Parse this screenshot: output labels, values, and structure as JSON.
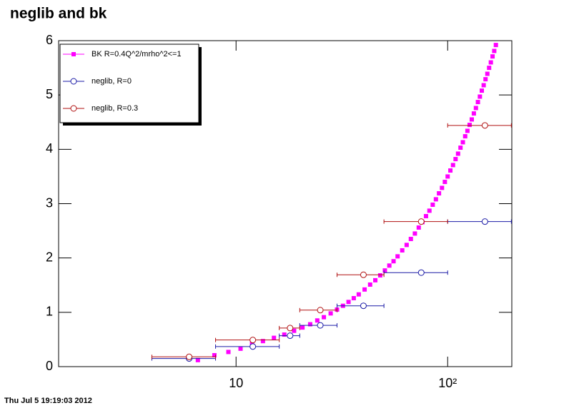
{
  "chart_data": {
    "type": "scatter",
    "title": "neglib and bk",
    "footer": "Thu Jul  5 19:19:03 2012",
    "xscale": "log",
    "xlim": [
      1.45,
      201
    ],
    "xticks": [
      10,
      {
        "value": 100,
        "label": "10²"
      }
    ],
    "ylim": [
      0,
      6
    ],
    "yticks": [
      0,
      1,
      2,
      3,
      4,
      5,
      6
    ],
    "legend": "top-left",
    "series": [
      {
        "name": "BK R=0.4Q^2/mrho^2<=1",
        "color": "#ff00ff",
        "marker": "square",
        "x": [
          6.6,
          7.9,
          9.2,
          10.5,
          11.9,
          13.4,
          15.1,
          16.9,
          18.8,
          20.6,
          22.4,
          24.2,
          26,
          28,
          30,
          32,
          34,
          36,
          38,
          40.5,
          43,
          45.5,
          48,
          50.5,
          53,
          55.5,
          58,
          61,
          64,
          67,
          70,
          73,
          76,
          79,
          82,
          85,
          88,
          91,
          94,
          97,
          100,
          103,
          106,
          109,
          112,
          115,
          118,
          121,
          124,
          127,
          130,
          133,
          136,
          139,
          142,
          145,
          148,
          151,
          154,
          157,
          160,
          163,
          166,
          169
        ],
        "values": [
          0.12,
          0.21,
          0.27,
          0.33,
          0.42,
          0.47,
          0.53,
          0.59,
          0.66,
          0.72,
          0.78,
          0.85,
          0.91,
          0.98,
          1.05,
          1.12,
          1.19,
          1.26,
          1.33,
          1.42,
          1.51,
          1.59,
          1.68,
          1.77,
          1.86,
          1.94,
          2.03,
          2.14,
          2.24,
          2.35,
          2.45,
          2.56,
          2.66,
          2.77,
          2.87,
          2.98,
          3.08,
          3.19,
          3.29,
          3.4,
          3.5,
          3.61,
          3.71,
          3.82,
          3.92,
          4.03,
          4.13,
          4.24,
          4.34,
          4.45,
          4.55,
          4.66,
          4.76,
          4.87,
          4.97,
          5.08,
          5.18,
          5.29,
          5.39,
          5.5,
          5.6,
          5.71,
          5.81,
          5.92
        ]
      },
      {
        "name": "neglib, R=0",
        "color": "#1a1aa6",
        "marker": "circle",
        "x": [
          6,
          12,
          18,
          25,
          40,
          75,
          150
        ],
        "xerr": [
          2,
          4,
          2,
          5,
          10,
          25,
          50
        ],
        "values": [
          0.15,
          0.37,
          0.57,
          0.76,
          1.12,
          1.73,
          2.67
        ]
      },
      {
        "name": "neglib, R=0.3",
        "color": "#b01010",
        "marker": "circle",
        "x": [
          6,
          12,
          18,
          25,
          40,
          75,
          150
        ],
        "xerr": [
          2,
          4,
          2,
          5,
          10,
          25,
          50
        ],
        "values": [
          0.18,
          0.49,
          0.71,
          1.04,
          1.69,
          2.67,
          4.44
        ]
      }
    ]
  }
}
